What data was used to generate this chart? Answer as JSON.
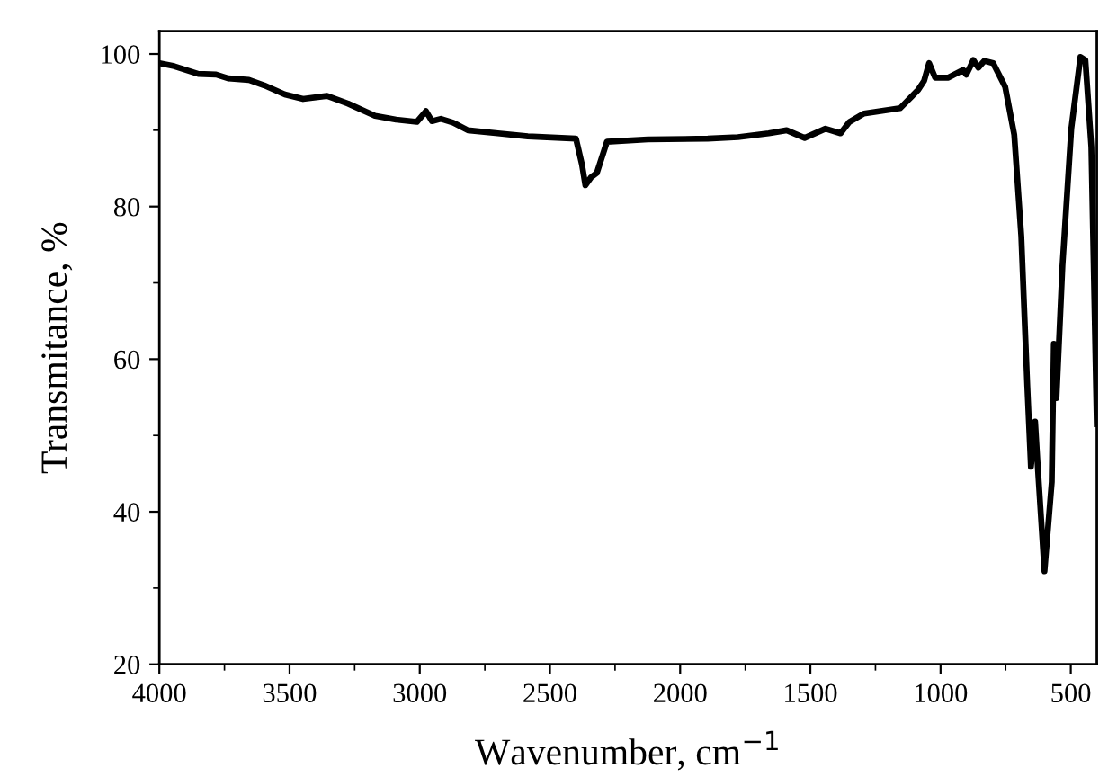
{
  "chart_data": {
    "type": "line",
    "xlabel": "Wavenumber, cm$^{−1}$",
    "ylabel": "Transmitance, %",
    "xlim": [
      4000,
      400
    ],
    "ylim": [
      20,
      103
    ],
    "xticks": [
      4000,
      {
        "value": 3750,
        "label": null
      },
      3500,
      {
        "value": 3250,
        "label": null
      },
      3000,
      {
        "value": 2750,
        "label": null
      },
      2500,
      {
        "value": 2250,
        "label": null
      },
      2000,
      {
        "value": 1750,
        "label": null
      },
      1500,
      {
        "value": 1250,
        "label": null
      },
      1000,
      {
        "value": 750,
        "label": null
      },
      500
    ],
    "yticks": [
      20,
      {
        "value": 30,
        "label": null
      },
      40,
      {
        "value": 50,
        "label": null
      },
      60,
      {
        "value": 70,
        "label": null
      },
      80,
      {
        "value": 90,
        "label": null
      },
      100
    ],
    "grid": false,
    "marker": "none",
    "line_style": "solid",
    "series": [
      {
        "color": "#000000",
        "x": [
          4000,
          3943,
          3851,
          3782,
          3736,
          3656,
          3598,
          3518,
          3448,
          3356,
          3276,
          3172,
          3091,
          3011,
          2976,
          2953,
          2919,
          2872,
          2815,
          2700,
          2585,
          2400,
          2377,
          2364,
          2343,
          2320,
          2281,
          2124,
          1894,
          1778,
          1660,
          1591,
          1522,
          1442,
          1384,
          1350,
          1294,
          1155,
          1086,
          1063,
          1044,
          1021,
          970,
          913,
          901,
          874,
          855,
          832,
          798,
          752,
          717,
          690,
          667,
          653,
          637,
          626,
          601,
          573,
          565,
          555,
          532,
          498,
          463,
          444,
          421,
          400
        ],
        "values": [
          98.8,
          98.4,
          97.4,
          97.3,
          96.8,
          96.6,
          95.9,
          94.7,
          94.1,
          94.5,
          93.5,
          91.9,
          91.4,
          91.1,
          92.5,
          91.2,
          91.5,
          91.0,
          90.0,
          89.6,
          89.2,
          88.9,
          85.5,
          82.8,
          83.8,
          84.4,
          88.5,
          88.8,
          88.9,
          89.1,
          89.6,
          90.0,
          89.0,
          90.2,
          89.6,
          91.1,
          92.2,
          92.9,
          95.3,
          96.5,
          98.8,
          96.9,
          96.9,
          97.9,
          97.3,
          99.2,
          98.2,
          99.1,
          98.8,
          95.7,
          89.4,
          76.1,
          56.5,
          45.9,
          51.8,
          45.5,
          32.2,
          43.9,
          62.0,
          54.9,
          72.2,
          90.2,
          99.6,
          99.2,
          87.8,
          51.5
        ]
      }
    ]
  }
}
